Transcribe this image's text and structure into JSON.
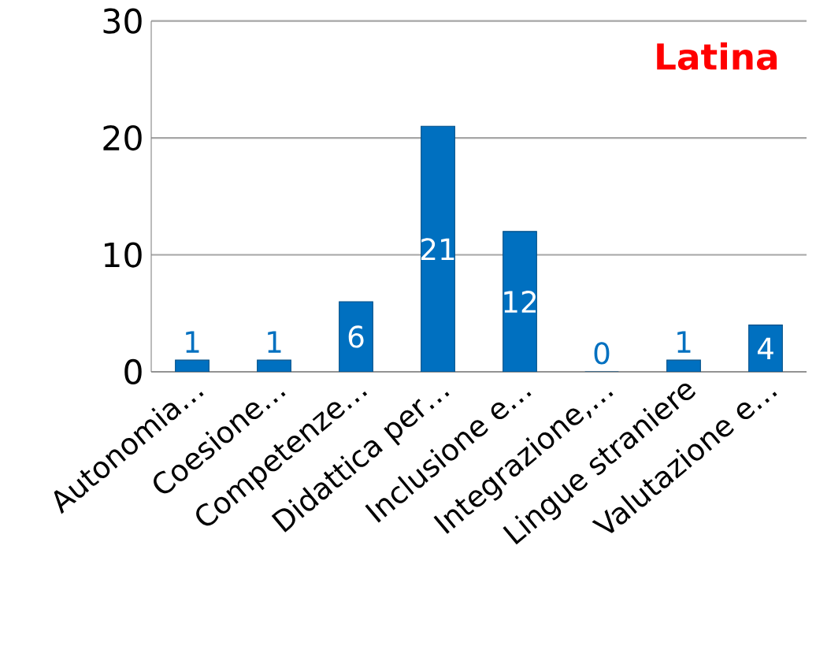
{
  "chart_data": {
    "type": "bar",
    "title": "Latina",
    "categories": [
      "Autonomia…",
      "Coesione…",
      "Competenze…",
      "Didattica per…",
      "Inclusione e…",
      "Integrazione,…",
      "Lingue straniere",
      "Valutazione e…"
    ],
    "values": [
      1,
      1,
      6,
      21,
      12,
      0,
      1,
      4
    ],
    "color": "#0070c0",
    "ylim": [
      0,
      30
    ],
    "yticks": [
      0,
      10,
      20,
      30
    ],
    "grid": "y",
    "data_labels": true
  }
}
